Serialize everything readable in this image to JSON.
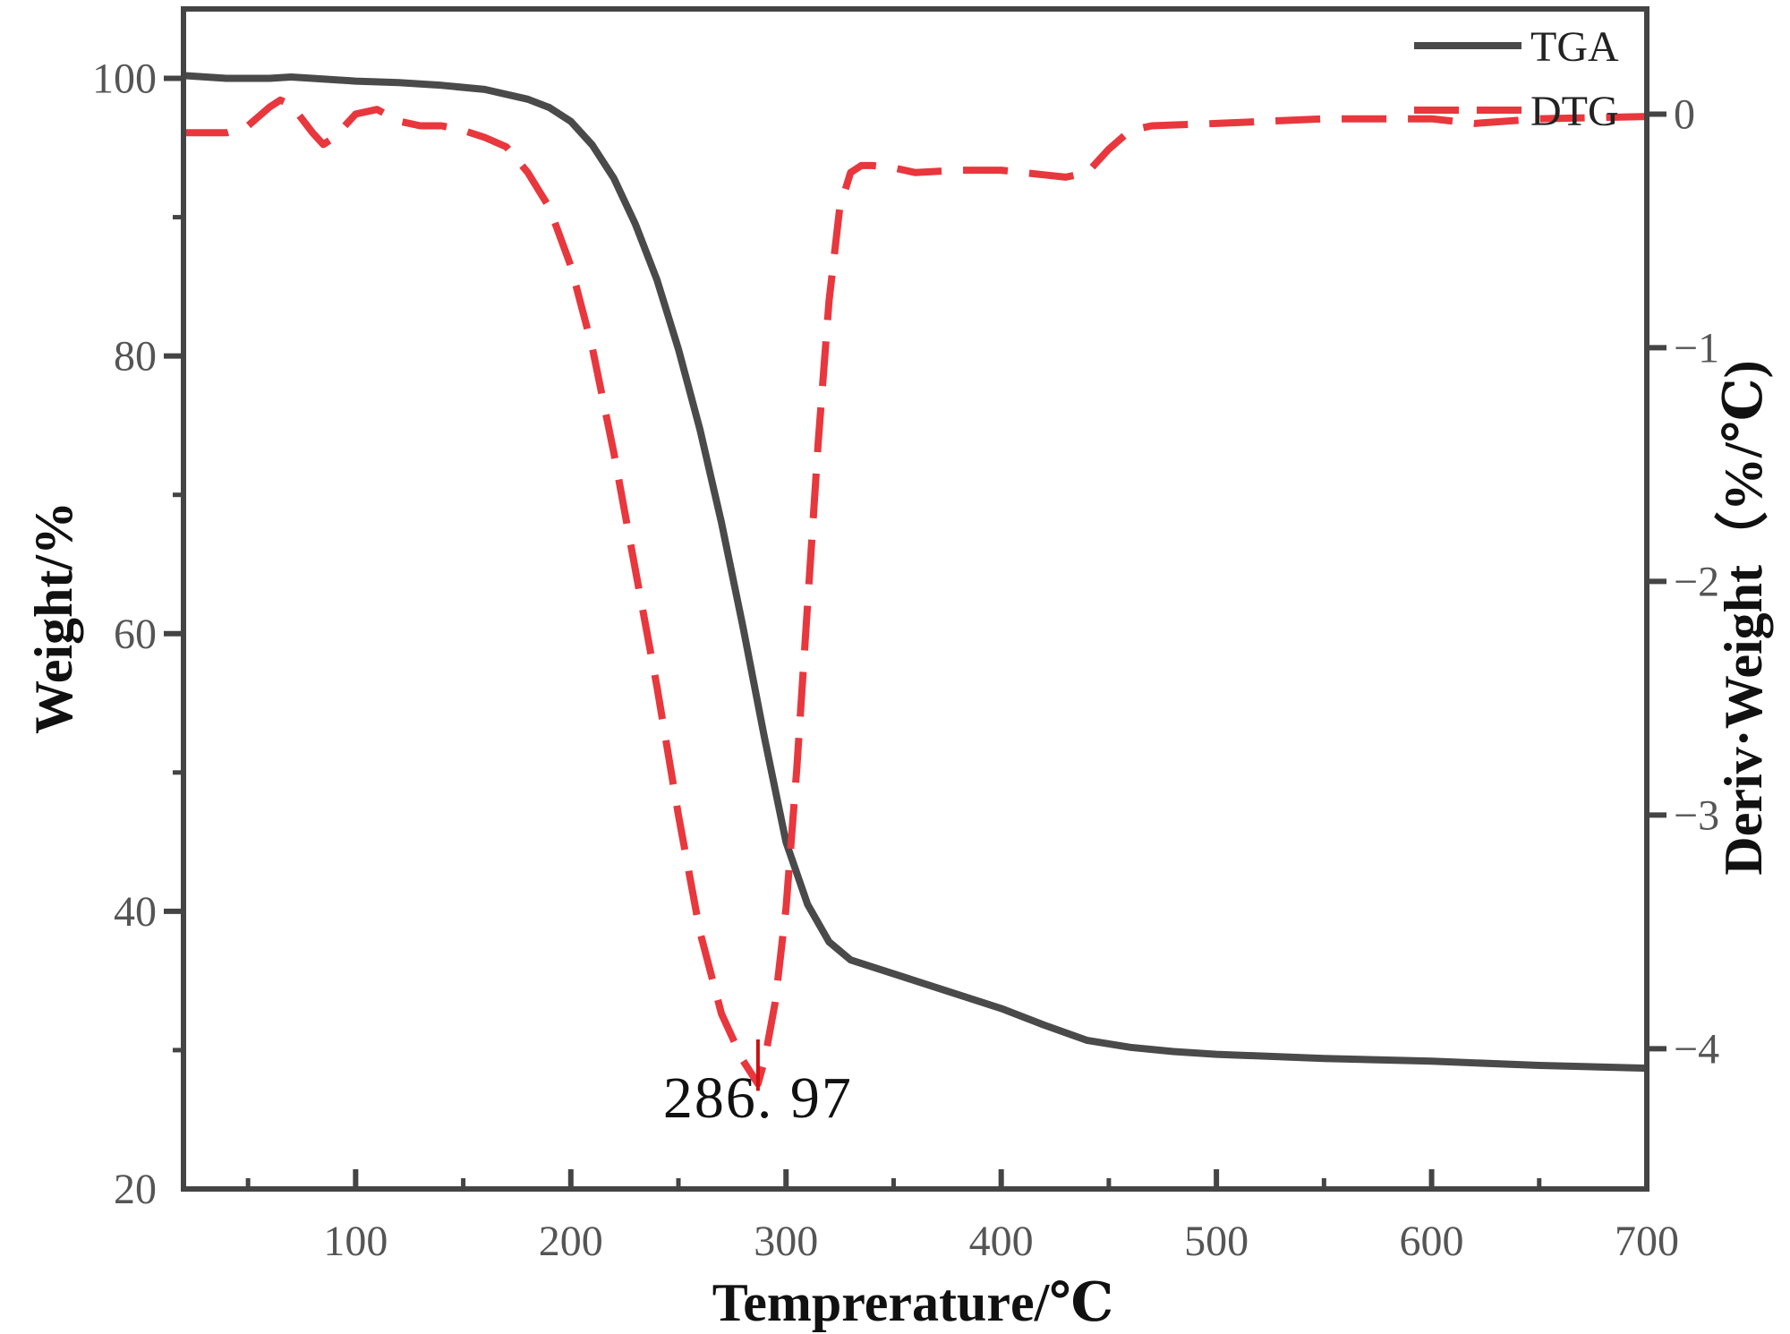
{
  "chart_data": {
    "type": "line",
    "xlabel": "Tempreraturе/℃",
    "ylabel_left": "Weight/%",
    "ylabel_right": "Deriv·Weight（%/℃)",
    "xlim": [
      20,
      700
    ],
    "ylim_left": [
      20,
      105
    ],
    "ylim_right": [
      -4.6,
      0.45
    ],
    "x_ticks": [
      100,
      200,
      300,
      400,
      500,
      600,
      700
    ],
    "y_left_ticks": [
      20,
      40,
      60,
      80,
      100
    ],
    "y_right_ticks": [
      0,
      -1,
      -2,
      -3,
      -4
    ],
    "y_right_tick_labels": [
      "0",
      "−1",
      "−2",
      "−3",
      "−4"
    ],
    "grid": false,
    "legend_position": "top-right",
    "colors": {
      "tga": "#4a4a4a",
      "dtg": "#e8373d",
      "frame": "#444444",
      "annotation": "#cc1111"
    },
    "series": [
      {
        "name": "TGA",
        "axis": "left",
        "style": "solid",
        "x": [
          20,
          40,
          60,
          70,
          80,
          100,
          120,
          140,
          160,
          180,
          190,
          200,
          210,
          220,
          230,
          240,
          250,
          260,
          270,
          280,
          290,
          300,
          310,
          320,
          330,
          340,
          350,
          360,
          380,
          400,
          420,
          440,
          460,
          480,
          500,
          550,
          600,
          650,
          700
        ],
        "y": [
          100.2,
          100.0,
          100.0,
          100.1,
          100.0,
          99.8,
          99.7,
          99.5,
          99.2,
          98.5,
          97.9,
          96.9,
          95.2,
          92.8,
          89.5,
          85.5,
          80.5,
          74.7,
          68.0,
          60.5,
          52.5,
          45.0,
          40.5,
          37.8,
          36.5,
          36.0,
          35.5,
          35.0,
          34.0,
          33.0,
          31.8,
          30.7,
          30.2,
          29.9,
          29.7,
          29.4,
          29.2,
          28.9,
          28.7
        ]
      },
      {
        "name": "DTG",
        "axis": "right",
        "style": "dashed",
        "x": [
          20,
          40,
          50,
          60,
          65,
          70,
          80,
          85,
          90,
          100,
          110,
          120,
          130,
          140,
          150,
          160,
          170,
          180,
          190,
          200,
          210,
          220,
          230,
          240,
          250,
          260,
          270,
          280,
          286.97,
          290,
          295,
          300,
          305,
          310,
          315,
          320,
          325,
          330,
          335,
          340,
          350,
          360,
          380,
          400,
          420,
          430,
          440,
          450,
          460,
          470,
          500,
          550,
          600,
          620,
          650,
          700
        ],
        "y": [
          -0.08,
          -0.08,
          -0.05,
          0.03,
          0.06,
          0.04,
          -0.08,
          -0.13,
          -0.1,
          0.0,
          0.02,
          -0.03,
          -0.05,
          -0.05,
          -0.07,
          -0.1,
          -0.14,
          -0.25,
          -0.4,
          -0.65,
          -1.0,
          -1.45,
          -1.95,
          -2.45,
          -3.0,
          -3.5,
          -3.85,
          -4.05,
          -4.15,
          -4.05,
          -3.8,
          -3.4,
          -2.8,
          -2.1,
          -1.4,
          -0.8,
          -0.4,
          -0.25,
          -0.22,
          -0.22,
          -0.23,
          -0.25,
          -0.24,
          -0.24,
          -0.26,
          -0.27,
          -0.25,
          -0.15,
          -0.07,
          -0.05,
          -0.04,
          -0.02,
          -0.02,
          -0.04,
          -0.02,
          -0.01
        ]
      }
    ],
    "annotation": {
      "label": "286. 97",
      "x": 286.97
    }
  },
  "legend": [
    {
      "label": "TGA",
      "style": "solid"
    },
    {
      "label": "DTG",
      "style": "dashed"
    }
  ]
}
